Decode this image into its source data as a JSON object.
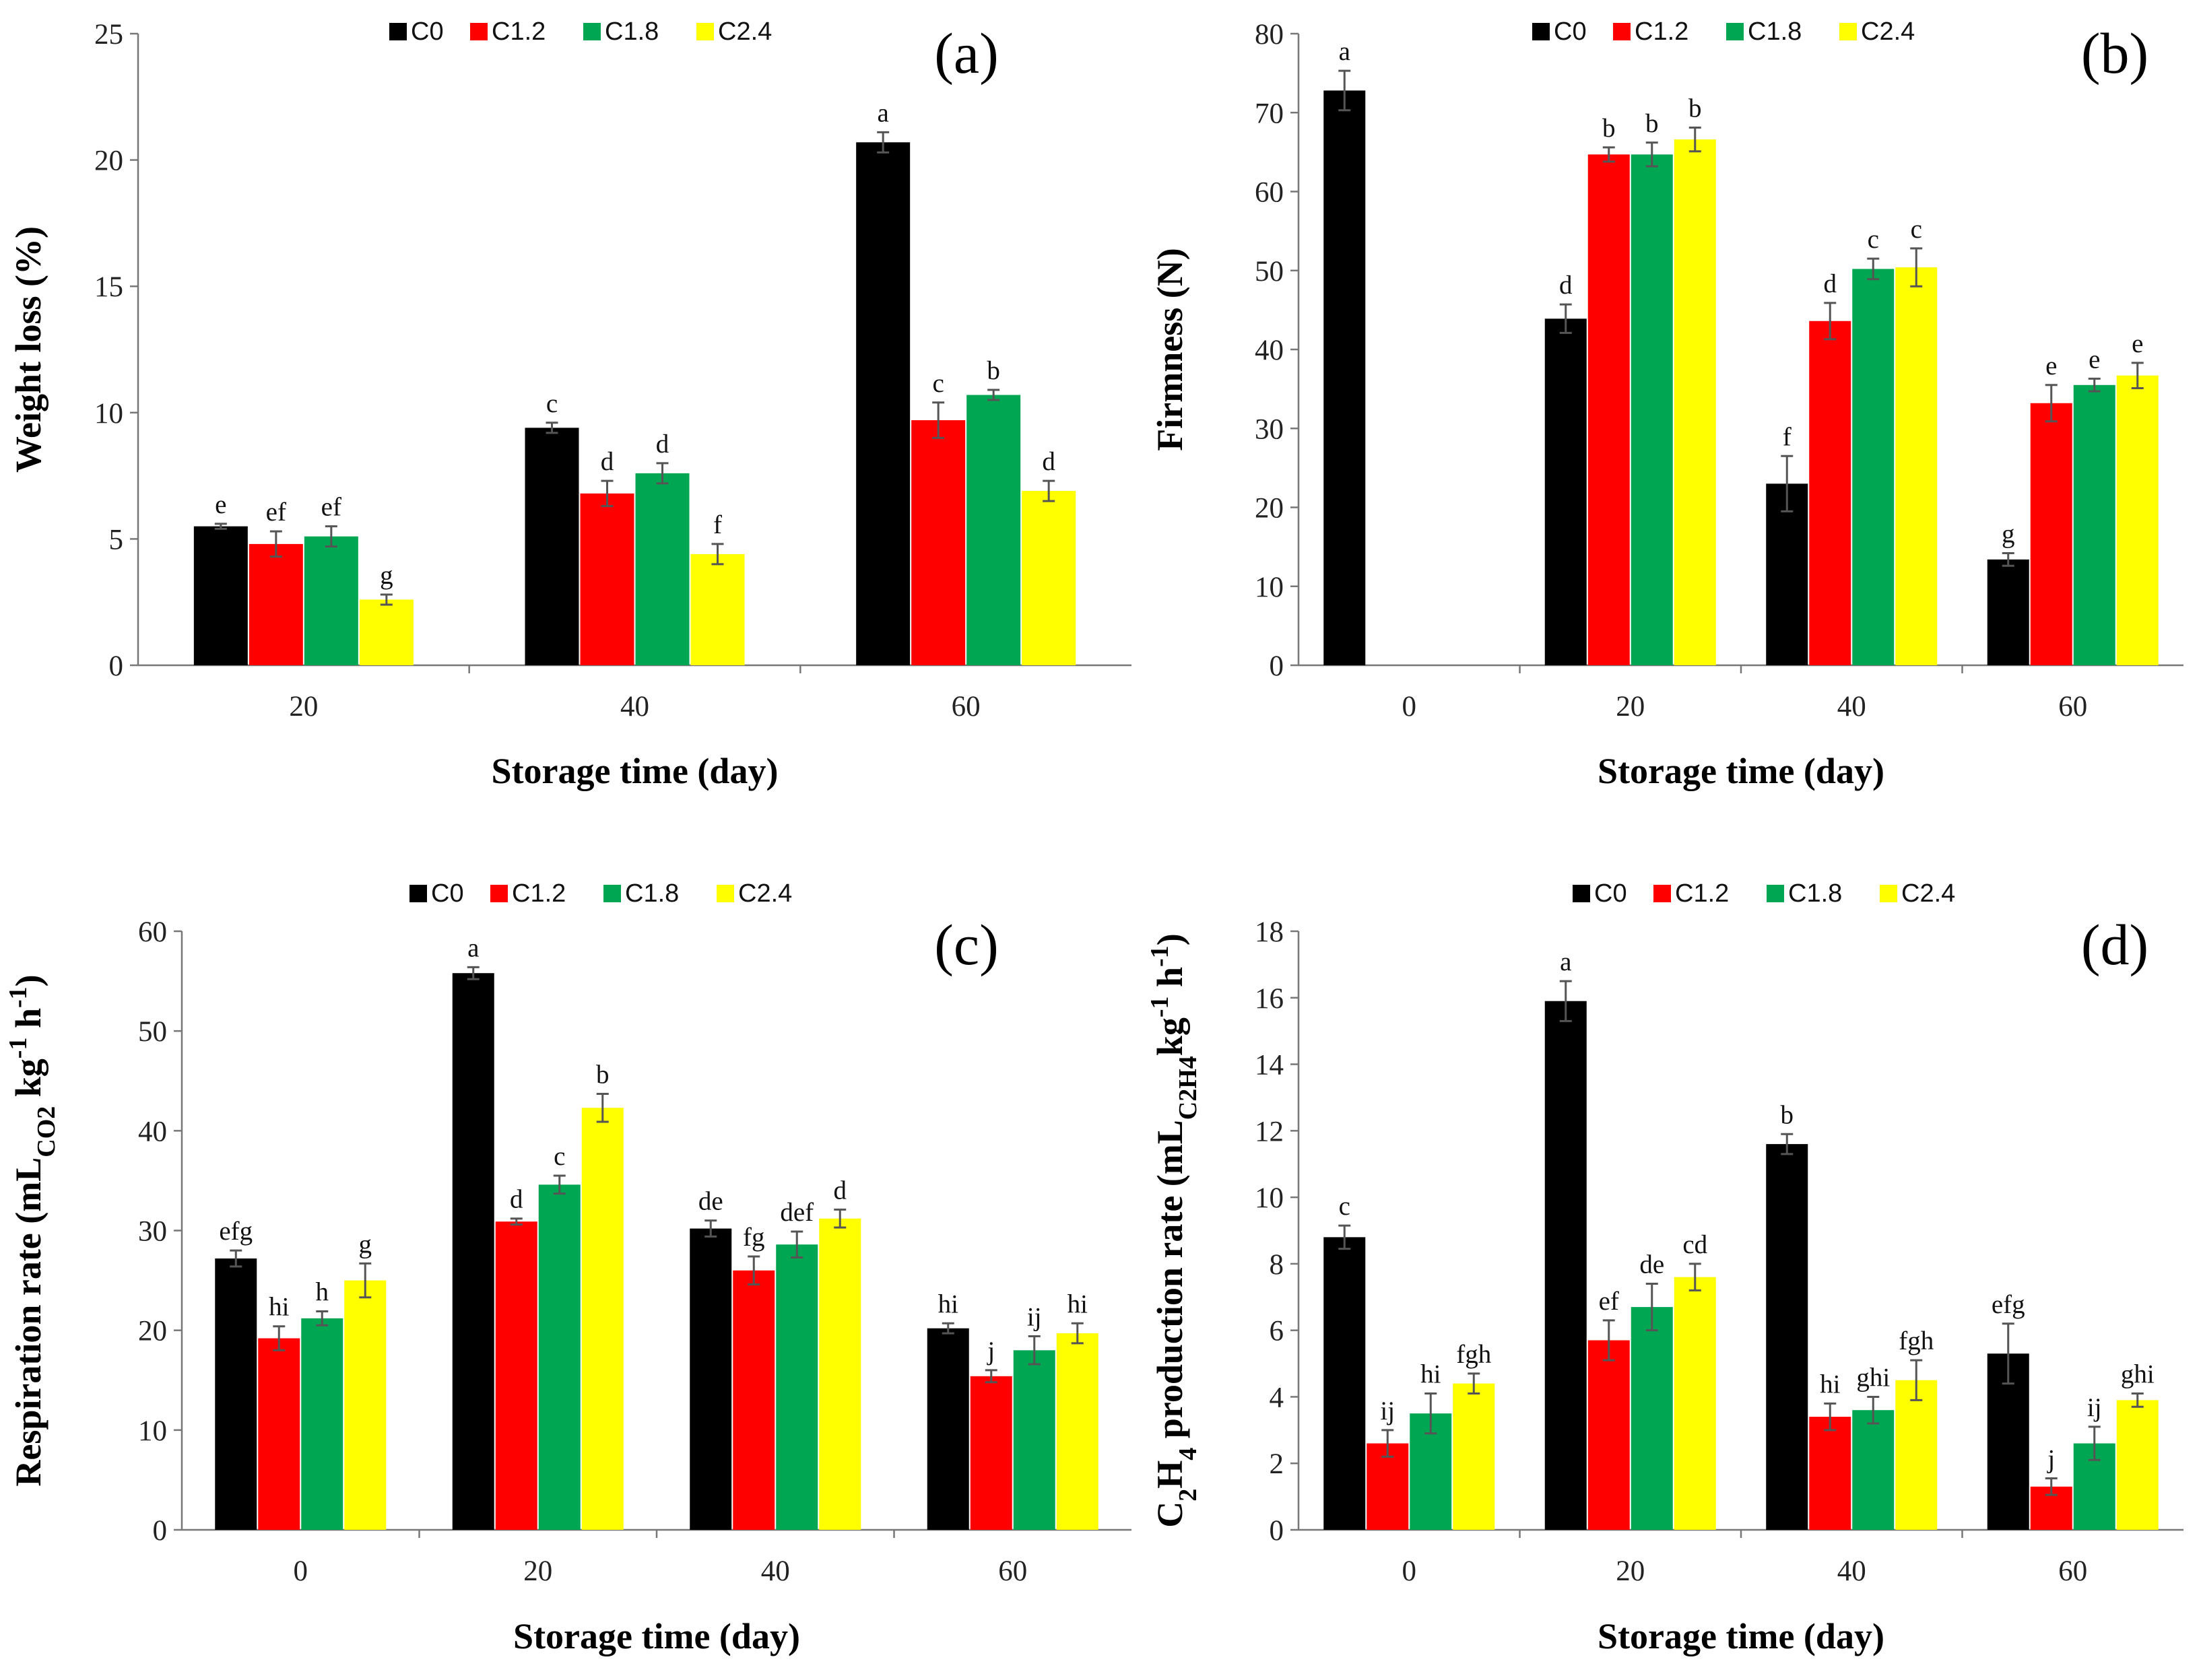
{
  "colors": {
    "C0": "#000000",
    "C1.2": "#ff0000",
    "C1.8": "#00a651",
    "C2.4": "#ffff00"
  },
  "legend": [
    "C0",
    "C1.2",
    "C1.8",
    "C2.4"
  ],
  "chart_data": [
    {
      "panel": "(a)",
      "type": "bar",
      "xlabel": "Storage time (day)",
      "ylabel": "Weight loss (%)",
      "categories": [
        "20",
        "40",
        "60"
      ],
      "ylim": [
        0,
        25
      ],
      "yticks": [
        0,
        5,
        10,
        15,
        20,
        25
      ],
      "series": [
        {
          "name": "C0",
          "values": [
            5.5,
            9.4,
            20.7
          ],
          "errors": [
            0.1,
            0.2,
            0.4
          ],
          "letters": [
            "e",
            "c",
            "a"
          ]
        },
        {
          "name": "C1.2",
          "values": [
            4.8,
            6.8,
            9.7
          ],
          "errors": [
            0.5,
            0.5,
            0.7
          ],
          "letters": [
            "ef",
            "d",
            "c"
          ]
        },
        {
          "name": "C1.8",
          "values": [
            5.1,
            7.6,
            10.7
          ],
          "errors": [
            0.4,
            0.4,
            0.2
          ],
          "letters": [
            "ef",
            "d",
            "b"
          ]
        },
        {
          "name": "C2.4",
          "values": [
            2.6,
            4.4,
            6.9
          ],
          "errors": [
            0.2,
            0.4,
            0.4
          ],
          "letters": [
            "g",
            "f",
            "d"
          ]
        }
      ]
    },
    {
      "panel": "(b)",
      "type": "bar",
      "xlabel": "Storage time (day)",
      "ylabel": "Firmness (N)",
      "categories": [
        "0",
        "20",
        "40",
        "60"
      ],
      "ylim": [
        0,
        80
      ],
      "yticks": [
        0,
        10,
        20,
        30,
        40,
        50,
        60,
        70,
        80
      ],
      "series": [
        {
          "name": "C0",
          "values": [
            72.8,
            43.9,
            23.0,
            13.4
          ],
          "errors": [
            2.5,
            1.8,
            3.5,
            0.8
          ],
          "letters": [
            "a",
            "d",
            "f",
            "g"
          ]
        },
        {
          "name": "C1.2",
          "values": [
            null,
            64.7,
            43.6,
            33.2
          ],
          "errors": [
            null,
            0.9,
            2.3,
            2.3
          ],
          "letters": [
            "",
            "b",
            "d",
            "e"
          ]
        },
        {
          "name": "C1.8",
          "values": [
            null,
            64.7,
            50.2,
            35.5
          ],
          "errors": [
            null,
            1.5,
            1.3,
            0.8
          ],
          "letters": [
            "",
            "b",
            "c",
            "e"
          ]
        },
        {
          "name": "C2.4",
          "values": [
            null,
            66.6,
            50.4,
            36.7
          ],
          "errors": [
            null,
            1.5,
            2.4,
            1.6
          ],
          "letters": [
            "",
            "b",
            "c",
            "e"
          ]
        }
      ]
    },
    {
      "panel": "(c)",
      "type": "bar",
      "xlabel": "Storage time (day)",
      "ylabel": "Respiration rate (mLCO2 kg-1 h-1)",
      "ylabel_parts": [
        "Respiration rate (mL",
        "CO2",
        " kg",
        "-1",
        " h",
        "-1",
        ")"
      ],
      "categories": [
        "0",
        "20",
        "40",
        "60"
      ],
      "ylim": [
        0,
        60
      ],
      "yticks": [
        0,
        10,
        20,
        30,
        40,
        50,
        60
      ],
      "series": [
        {
          "name": "C0",
          "values": [
            27.2,
            55.8,
            30.2,
            20.2
          ],
          "errors": [
            0.8,
            0.6,
            0.8,
            0.5
          ],
          "letters": [
            "efg",
            "a",
            "de",
            "hi"
          ]
        },
        {
          "name": "C1.2",
          "values": [
            19.2,
            30.9,
            26.0,
            15.4
          ],
          "errors": [
            1.2,
            0.3,
            1.4,
            0.6
          ],
          "letters": [
            "hi",
            "d",
            "fg",
            "j"
          ]
        },
        {
          "name": "C1.8",
          "values": [
            21.2,
            34.6,
            28.6,
            18.0
          ],
          "errors": [
            0.7,
            0.9,
            1.3,
            1.4
          ],
          "letters": [
            "h",
            "c",
            "def",
            "ij"
          ]
        },
        {
          "name": "C2.4",
          "values": [
            25.0,
            42.3,
            31.2,
            19.7
          ],
          "errors": [
            1.7,
            1.4,
            0.9,
            1.0
          ],
          "letters": [
            "g",
            "b",
            "d",
            "hi"
          ]
        }
      ]
    },
    {
      "panel": "(d)",
      "type": "bar",
      "xlabel": "Storage time (day)",
      "ylabel": "C2H4 production rate (mLC2H4kg-1 h-1)",
      "ylabel_parts": [
        "C",
        "2",
        "H",
        "4",
        " production rate (mL",
        "C2H4",
        "kg",
        "-1",
        " h",
        "-1",
        ")"
      ],
      "categories": [
        "0",
        "20",
        "40",
        "60"
      ],
      "ylim": [
        0,
        18
      ],
      "yticks": [
        0,
        2,
        4,
        6,
        8,
        10,
        12,
        14,
        16,
        18
      ],
      "series": [
        {
          "name": "C0",
          "values": [
            8.8,
            15.9,
            11.6,
            5.3
          ],
          "errors": [
            0.35,
            0.6,
            0.3,
            0.9
          ],
          "letters": [
            "c",
            "a",
            "b",
            "efg"
          ]
        },
        {
          "name": "C1.2",
          "values": [
            2.6,
            5.7,
            3.4,
            1.3
          ],
          "errors": [
            0.4,
            0.6,
            0.4,
            0.25
          ],
          "letters": [
            "ij",
            "ef",
            "hi",
            "j"
          ]
        },
        {
          "name": "C1.8",
          "values": [
            3.5,
            6.7,
            3.6,
            2.6
          ],
          "errors": [
            0.6,
            0.7,
            0.4,
            0.5
          ],
          "letters": [
            "hi",
            "de",
            "ghi",
            "ij"
          ]
        },
        {
          "name": "C2.4",
          "values": [
            4.4,
            7.6,
            4.5,
            3.9
          ],
          "errors": [
            0.3,
            0.4,
            0.6,
            0.2
          ],
          "letters": [
            "fgh",
            "cd",
            "fgh",
            "ghi"
          ]
        }
      ]
    }
  ]
}
